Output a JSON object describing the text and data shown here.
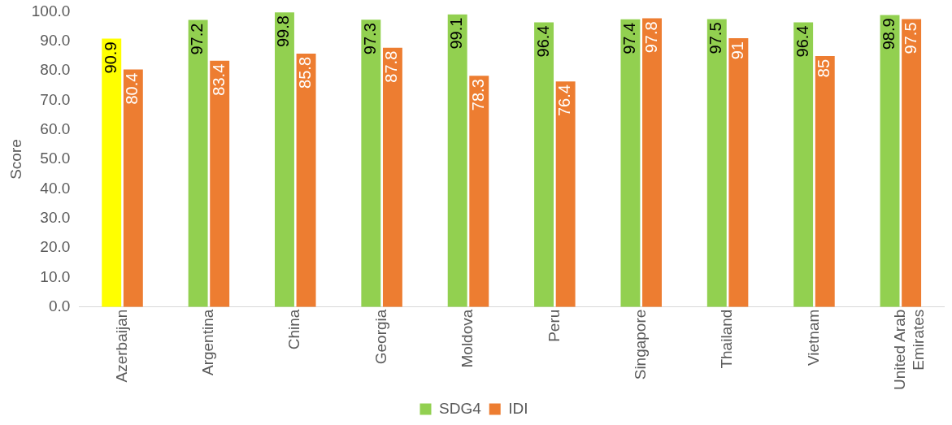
{
  "chart_data": {
    "type": "bar",
    "ylabel": "Score",
    "categories": [
      "Azerbaijan",
      "Argentina",
      "China",
      "Georgia",
      "Moldova",
      "Peru",
      "Singapore",
      "Thailand",
      "Vietnam",
      "United Arab Emirates"
    ],
    "series": [
      {
        "name": "SDG4",
        "color": "#92d050",
        "colors": [
          "#ffff00",
          "#92d050",
          "#92d050",
          "#92d050",
          "#92d050",
          "#92d050",
          "#92d050",
          "#92d050",
          "#92d050",
          "#92d050"
        ],
        "values": [
          90.9,
          97.2,
          99.8,
          97.3,
          99.1,
          96.4,
          97.4,
          97.5,
          96.4,
          98.9
        ]
      },
      {
        "name": "IDI",
        "color": "#ed7d31",
        "values": [
          80.4,
          83.4,
          85.8,
          87.8,
          78.3,
          76.4,
          97.8,
          91,
          85,
          97.5
        ]
      }
    ],
    "ylim": [
      0,
      100
    ],
    "yticks": [
      {
        "value": 0,
        "label": "0.0"
      },
      {
        "value": 10,
        "label": "10.0"
      },
      {
        "value": 20,
        "label": "20.0"
      },
      {
        "value": 30,
        "label": "30.0"
      },
      {
        "value": 40,
        "label": "40.0"
      },
      {
        "value": 50,
        "label": "50.0"
      },
      {
        "value": 60,
        "label": "60.0"
      },
      {
        "value": 70,
        "label": "70.0"
      },
      {
        "value": 80,
        "label": "80.0"
      },
      {
        "value": 90,
        "label": "90.0"
      },
      {
        "value": 100,
        "label": "100.0"
      }
    ],
    "data_labels": true,
    "legend": "bottom"
  }
}
